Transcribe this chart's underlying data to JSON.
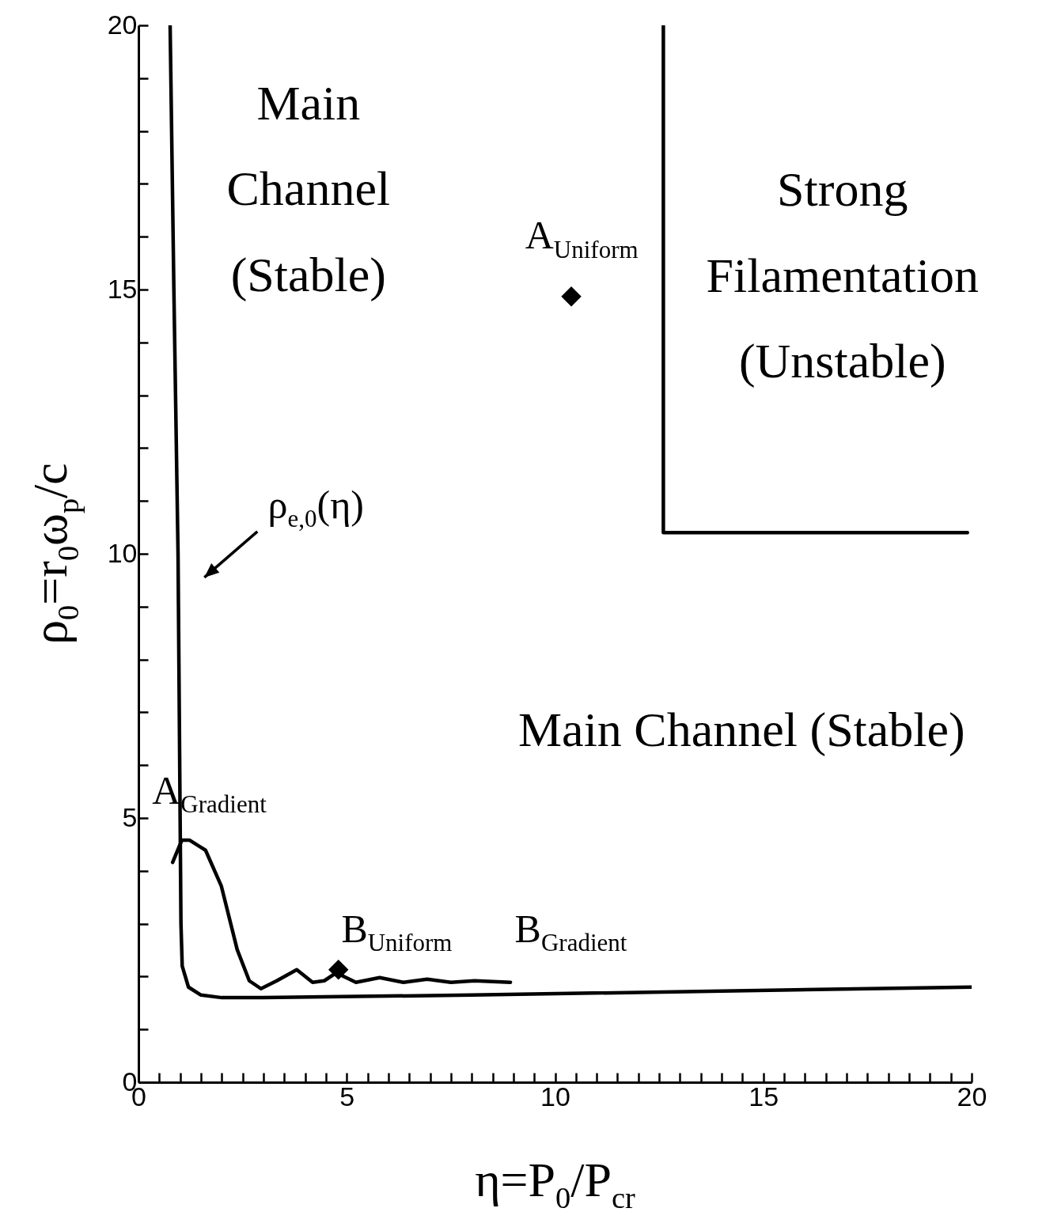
{
  "chart_data": {
    "type": "line",
    "xlabel": "η=P$_{0}$/P$_{cr}$",
    "ylabel": "ρ$_{0}$=r$_{0}$ω$_{p}$/c",
    "xlim": [
      0,
      20
    ],
    "ylim": [
      0,
      20
    ],
    "xticks": [
      0,
      {
        "value": 0.5,
        "label": null
      },
      {
        "value": 1,
        "label": null
      },
      {
        "value": 1.5,
        "label": null
      },
      {
        "value": 2,
        "label": null
      },
      {
        "value": 2.5,
        "label": null
      },
      {
        "value": 3,
        "label": null
      },
      {
        "value": 3.5,
        "label": null
      },
      {
        "value": 4,
        "label": null
      },
      {
        "value": 4.5,
        "label": null
      },
      5,
      {
        "value": 5.5,
        "label": null
      },
      {
        "value": 6,
        "label": null
      },
      {
        "value": 6.5,
        "label": null
      },
      {
        "value": 7,
        "label": null
      },
      {
        "value": 7.5,
        "label": null
      },
      {
        "value": 8,
        "label": null
      },
      {
        "value": 8.5,
        "label": null
      },
      {
        "value": 9,
        "label": null
      },
      {
        "value": 9.5,
        "label": null
      },
      10,
      {
        "value": 10.5,
        "label": null
      },
      {
        "value": 11,
        "label": null
      },
      {
        "value": 11.5,
        "label": null
      },
      {
        "value": 12,
        "label": null
      },
      {
        "value": 12.5,
        "label": null
      },
      {
        "value": 13,
        "label": null
      },
      {
        "value": 13.5,
        "label": null
      },
      {
        "value": 14,
        "label": null
      },
      {
        "value": 14.5,
        "label": null
      },
      15,
      {
        "value": 15.5,
        "label": null
      },
      {
        "value": 16,
        "label": null
      },
      {
        "value": 16.5,
        "label": null
      },
      {
        "value": 17,
        "label": null
      },
      {
        "value": 17.5,
        "label": null
      },
      {
        "value": 18,
        "label": null
      },
      {
        "value": 18.5,
        "label": null
      },
      {
        "value": 19,
        "label": null
      },
      {
        "value": 19.5,
        "label": null
      },
      20
    ],
    "yticks": [
      0,
      {
        "value": 1,
        "label": null
      },
      {
        "value": 2,
        "label": null
      },
      {
        "value": 3,
        "label": null
      },
      {
        "value": 4,
        "label": null
      },
      5,
      {
        "value": 6,
        "label": null
      },
      {
        "value": 7,
        "label": null
      },
      {
        "value": 8,
        "label": null
      },
      {
        "value": 9,
        "label": null
      },
      10,
      {
        "value": 11,
        "label": null
      },
      {
        "value": 12,
        "label": null
      },
      {
        "value": 13,
        "label": null
      },
      {
        "value": 14,
        "label": null
      },
      15,
      {
        "value": 16,
        "label": null
      },
      {
        "value": 17,
        "label": null
      },
      {
        "value": 18,
        "label": null
      },
      {
        "value": 19,
        "label": null
      },
      20
    ],
    "grid": false,
    "line_style": "solid",
    "series": [
      {
        "color": "#000000",
        "x": [
          0.76,
          0.85,
          0.95,
          1.0,
          1.02,
          1.05,
          1.2,
          1.5,
          2,
          3,
          8,
          20
        ],
        "values": [
          20,
          15,
          10,
          5,
          3,
          2.2,
          1.8,
          1.65,
          1.6,
          1.6,
          1.65,
          1.8
        ]
      },
      {
        "color": "#000000",
        "x": [
          0.82,
          1.04,
          1.23,
          1.61,
          1.99,
          2.37,
          2.66,
          2.94,
          3.32,
          3.8,
          4.18,
          4.46,
          4.75,
          5.22,
          5.79,
          6.36,
          6.93,
          7.5,
          8.07,
          8.93
        ],
        "values": [
          4.16,
          4.58,
          4.58,
          4.39,
          3.71,
          2.51,
          1.92,
          1.77,
          1.92,
          2.13,
          1.89,
          1.92,
          2.07,
          1.89,
          1.98,
          1.89,
          1.95,
          1.89,
          1.92,
          1.89
        ]
      },
      {
        "color": "#000000",
        "x": [
          12.6,
          12.6,
          19.9
        ],
        "values": [
          20,
          10.4,
          10.4
        ]
      },
      {
        "type": "scatter",
        "marker": "diamond",
        "color": "#000000",
        "x": [
          10.39,
          4.8
        ],
        "values": [
          14.87,
          2.13
        ]
      }
    ],
    "annotations": [
      "ρ$_{e,0}$(η)",
      "Main\nChannel\n(Stable)",
      "Strong\nFilamentation\n(Unstable)",
      "Main Channel (Stable)",
      "A$_{Uniform}$",
      "A$_{Gradient}$",
      "B$_{Uniform}$",
      "B$_{Gradient}$"
    ]
  }
}
